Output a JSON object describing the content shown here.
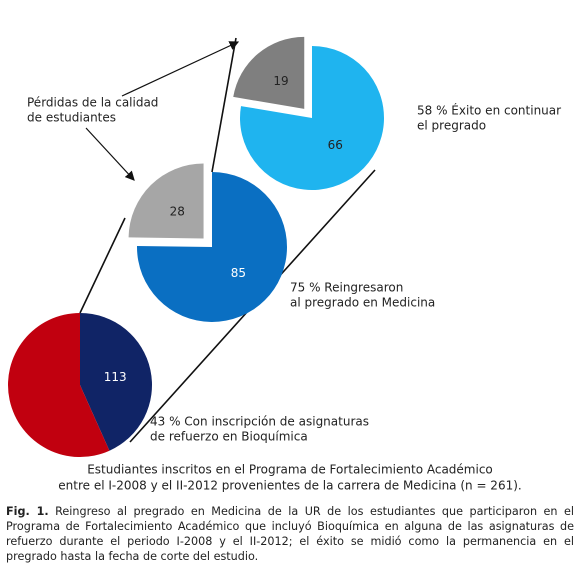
{
  "chart_data": [
    {
      "type": "pie",
      "values": [
        113,
        148
      ],
      "value_labels": [
        "113",
        null
      ],
      "colors": [
        "#102466",
        "#c1000f"
      ],
      "explode": [
        0,
        0
      ],
      "annotation": [
        "43 % Con inscripción de asignaturas",
        "de refuerzo en Bioquímica"
      ]
    },
    {
      "type": "pie",
      "values": [
        85,
        28
      ],
      "value_labels": [
        "85",
        "28"
      ],
      "colors": [
        "#0a6fc2",
        "#a6a6a6"
      ],
      "explode": [
        0,
        1
      ],
      "annotation": [
        "75 % Reingresaron",
        "al pregrado en Medicina"
      ]
    },
    {
      "type": "pie",
      "values": [
        66,
        19
      ],
      "value_labels": [
        "66",
        "19"
      ],
      "colors": [
        "#1fb4ef",
        "#7f7f7f"
      ],
      "explode": [
        0,
        1
      ],
      "annotation": [
        "58 % Éxito en continuar",
        "el pregrado"
      ]
    }
  ],
  "loss_note": [
    "Pérdidas de la calidad",
    "de estudiantes"
  ],
  "subtitle": [
    "Estudiantes inscritos en el Programa de Fortalecimiento Académico",
    "entre el I-2008 y el II-2012 provenientes de la carrera de Medicina (n = 261)."
  ],
  "caption": {
    "label": "Fig. 1.",
    "text": "Reingreso al pregrado en Medicina de la UR de los estudiantes que participaron en el Programa de Fortalecimiento Académico que incluyó Bioquímica en alguna de las asignaturas de refuerzo durante el periodo I-2008 y el II-2012; el éxito se midió como la permanencia en el pregrado hasta la fecha de corte del estudio."
  }
}
